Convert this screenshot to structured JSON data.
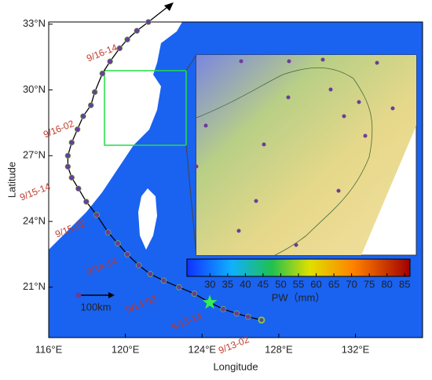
{
  "chart_data": {
    "type": "track-map",
    "xlabel": "Longitude",
    "ylabel": "Latitude",
    "xlim": [
      116,
      135.5
    ],
    "ylim": [
      18.7,
      33.1
    ],
    "xticks": [
      {
        "value": 116,
        "label": "116°E"
      },
      {
        "value": 120,
        "label": "120°E"
      },
      {
        "value": 124,
        "label": "124°E"
      },
      {
        "value": 128,
        "label": "128°E"
      },
      {
        "value": 132,
        "label": "132°E"
      }
    ],
    "yticks": [
      {
        "value": 21,
        "label": "21°N"
      },
      {
        "value": 24,
        "label": "24°N"
      },
      {
        "value": 27,
        "label": "27°N"
      },
      {
        "value": 30,
        "label": "30°N"
      },
      {
        "value": 33,
        "label": "33°N"
      }
    ],
    "track": {
      "color": "#6a3d9a",
      "lon": [
        127.1,
        126.4,
        125.8,
        125.1,
        124.4,
        123.6,
        122.8,
        122.0,
        121.3,
        120.7,
        120.1,
        119.6,
        119.1,
        118.5,
        117.96,
        117.55,
        117.2,
        117.0,
        117.0,
        117.2,
        117.5,
        117.8,
        118.2,
        118.4,
        118.8,
        119.2,
        119.7,
        120.1,
        120.6,
        121.2
      ],
      "lat": [
        19.5,
        19.65,
        19.8,
        20.0,
        20.3,
        20.7,
        21.0,
        21.3,
        21.6,
        22.0,
        22.5,
        23.0,
        23.5,
        24.3,
        24.9,
        25.5,
        26.0,
        26.5,
        27.0,
        27.6,
        28.2,
        28.8,
        29.3,
        29.9,
        30.75,
        31.3,
        31.9,
        32.3,
        32.7,
        33.1
      ]
    },
    "annotations": [
      "9/16-14",
      "9/16-02",
      "9/15-14",
      "9/15-02",
      "9/14-14",
      "9/14-02",
      "9/13-14",
      "9/13-02"
    ],
    "scale_label": "100km",
    "colorbar": {
      "label": "PW（mm）",
      "clim": [
        23.5,
        86.5
      ],
      "ticks": [
        30,
        35,
        40,
        45,
        50,
        55,
        60,
        65,
        70,
        75,
        80,
        85
      ]
    }
  }
}
